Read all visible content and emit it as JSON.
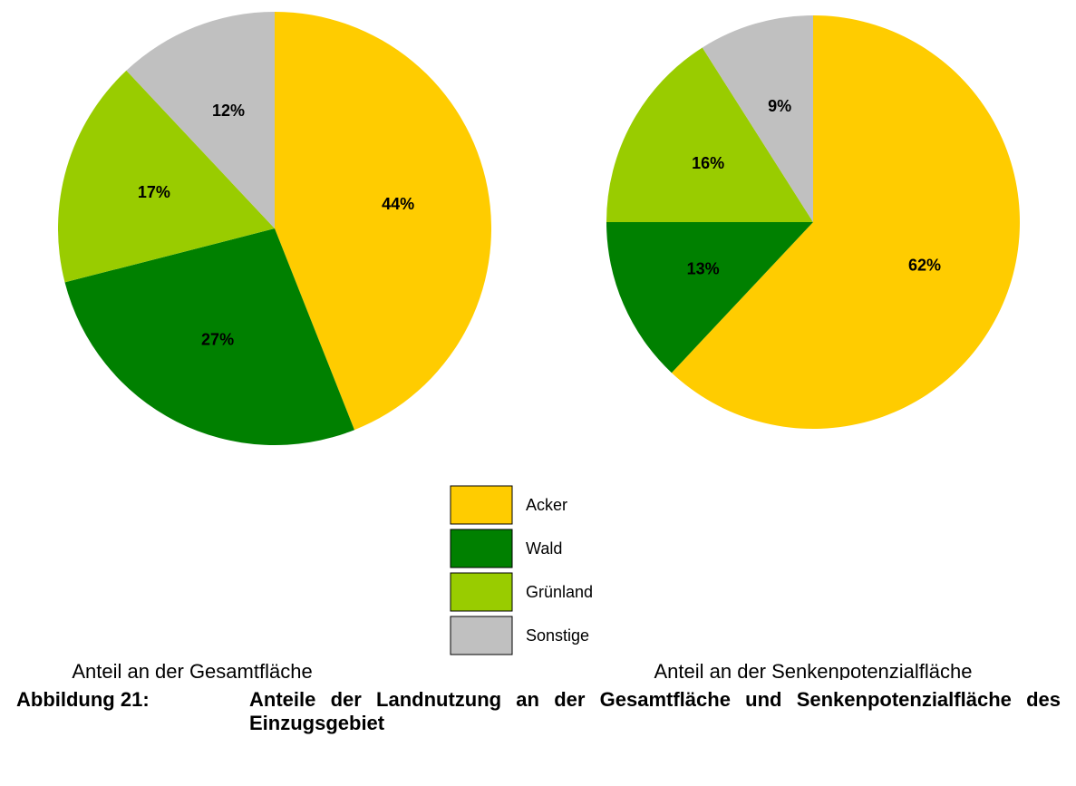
{
  "chart_data": [
    {
      "type": "pie",
      "title": "Anteil an der Gesamtfläche",
      "categories": [
        "Acker",
        "Wald",
        "Grünland",
        "Sonstige"
      ],
      "colors": [
        "#ffcc00",
        "#008000",
        "#99cc00",
        "#c0c0c0"
      ],
      "values": [
        44,
        27,
        17,
        12
      ],
      "value_labels": [
        "44%",
        "27%",
        "17%",
        "12%"
      ]
    },
    {
      "type": "pie",
      "title": "Anteil an der Senkenpotenzialfläche",
      "categories": [
        "Acker",
        "Wald",
        "Grünland",
        "Sonstige"
      ],
      "colors": [
        "#ffcc00",
        "#008000",
        "#99cc00",
        "#c0c0c0"
      ],
      "values": [
        62,
        13,
        16,
        9
      ],
      "value_labels": [
        "62%",
        "13%",
        "16%",
        "9%"
      ]
    }
  ],
  "caption": {
    "label": "Abbildung 21:",
    "text": "Anteile der Landnutzung an der Gesamtfläche und Senkenpotenzialfläche des Einzugsgebiet"
  }
}
